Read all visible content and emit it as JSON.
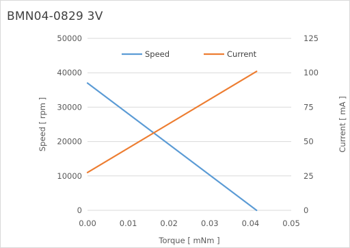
{
  "chart_data": {
    "type": "line",
    "title": "BMN04-0829 3V",
    "xlabel": "Torque [ mNm ]",
    "ylabel": "Speed [ rpm ]",
    "y2label": "Current [ mA ]",
    "xlim": [
      0,
      0.05
    ],
    "ylim": [
      0,
      50000
    ],
    "y2lim": [
      0,
      125
    ],
    "x_ticks": [
      "0.00",
      "0.01",
      "0.02",
      "0.03",
      "0.04",
      "0.05"
    ],
    "y_ticks": [
      "0",
      "10000",
      "20000",
      "30000",
      "40000",
      "50000"
    ],
    "y2_ticks": [
      "0",
      "25",
      "50",
      "75",
      "100",
      "125"
    ],
    "grid": "horizontal",
    "legend_position": "top",
    "series": [
      {
        "name": "Speed",
        "axis": "left",
        "color": "#5b9bd5",
        "x": [
          0.0,
          0.0415
        ],
        "values": [
          37000,
          0
        ]
      },
      {
        "name": "Current",
        "axis": "right",
        "color": "#ed7d31",
        "x": [
          0.0,
          0.0415
        ],
        "values": [
          27.5,
          101
        ]
      }
    ]
  }
}
